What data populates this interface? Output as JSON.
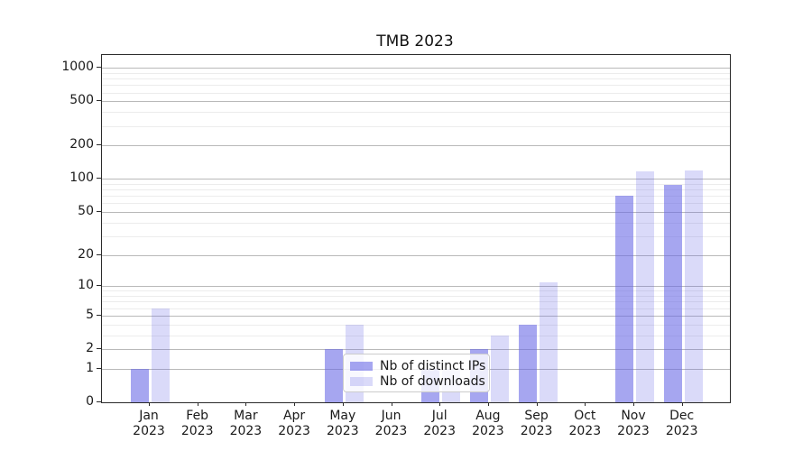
{
  "title": "TMB 2023",
  "chart_data": {
    "type": "bar",
    "title": "TMB 2023",
    "categories": [
      "Jan",
      "Feb",
      "Mar",
      "Apr",
      "May",
      "Jun",
      "Jul",
      "Aug",
      "Sep",
      "Oct",
      "Nov",
      "Dec"
    ],
    "year": "2023",
    "series": [
      {
        "key": "distinct-ips",
        "name": "Nb of distinct IPs",
        "color": "rgba(102,102,230,0.58)",
        "values": [
          1,
          0,
          0,
          0,
          2,
          0,
          1,
          2,
          4,
          0,
          70,
          88
        ]
      },
      {
        "key": "downloads",
        "name": "Nb of downloads",
        "color": "rgba(102,102,230,0.24)",
        "values": [
          6,
          0,
          0,
          0,
          4,
          0,
          1,
          3,
          11,
          0,
          116,
          120
        ]
      }
    ],
    "y_axis": {
      "scale": "log10(1+value)",
      "major_ticks": [
        0,
        1,
        2,
        5,
        10,
        20,
        50,
        100,
        200,
        500,
        1000
      ],
      "minor_ticks": [
        3,
        4,
        6,
        7,
        8,
        9,
        30,
        40,
        60,
        70,
        80,
        90,
        300,
        400,
        600,
        700,
        800,
        900
      ],
      "min": 0,
      "max": 1000
    },
    "legend": {
      "position": "lower center"
    },
    "grid": true
  }
}
